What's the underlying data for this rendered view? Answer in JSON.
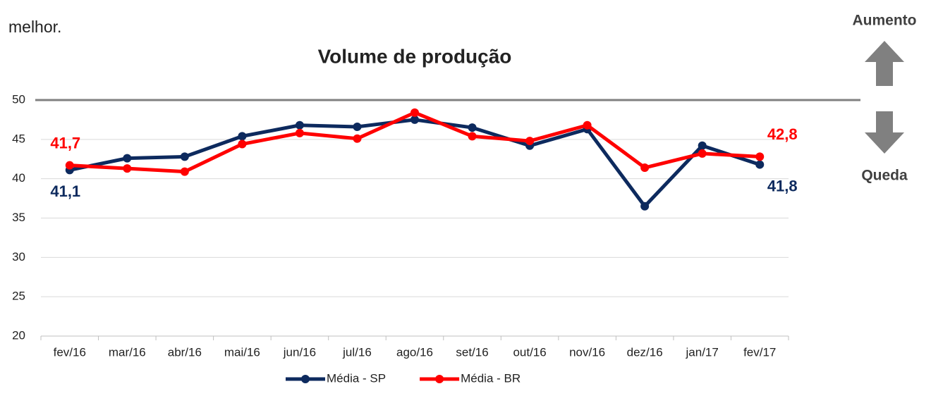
{
  "intro_text": "melhor.",
  "annotations": {
    "up": "Aumento",
    "down": "Queda"
  },
  "chart_data": {
    "type": "line",
    "title": "Volume de produção",
    "categories": [
      "fev/16",
      "mar/16",
      "abr/16",
      "mai/16",
      "jun/16",
      "jul/16",
      "ago/16",
      "set/16",
      "out/16",
      "nov/16",
      "dez/16",
      "jan/17",
      "fev/17"
    ],
    "series": [
      {
        "name": "Média - SP",
        "color": "#0d2a5e",
        "values": [
          41.1,
          42.6,
          42.8,
          45.4,
          46.8,
          46.6,
          47.5,
          46.5,
          44.2,
          46.3,
          36.5,
          44.2,
          41.8
        ],
        "value_labels": [
          "41,1",
          null,
          null,
          null,
          null,
          null,
          null,
          null,
          null,
          null,
          null,
          null,
          "41,8"
        ]
      },
      {
        "name": "Média - BR",
        "color": "#ff0000",
        "values": [
          41.7,
          41.3,
          40.9,
          44.4,
          45.8,
          45.1,
          48.4,
          45.4,
          44.8,
          46.8,
          41.4,
          43.2,
          42.8
        ],
        "value_labels": [
          "41,7",
          null,
          null,
          null,
          null,
          null,
          null,
          null,
          null,
          null,
          null,
          null,
          "42,8"
        ]
      }
    ],
    "ylim": [
      20,
      50
    ],
    "yticks": [
      20,
      25,
      30,
      35,
      40,
      45,
      50
    ],
    "grid": true,
    "reference_line": 50,
    "legend": "bottom"
  }
}
